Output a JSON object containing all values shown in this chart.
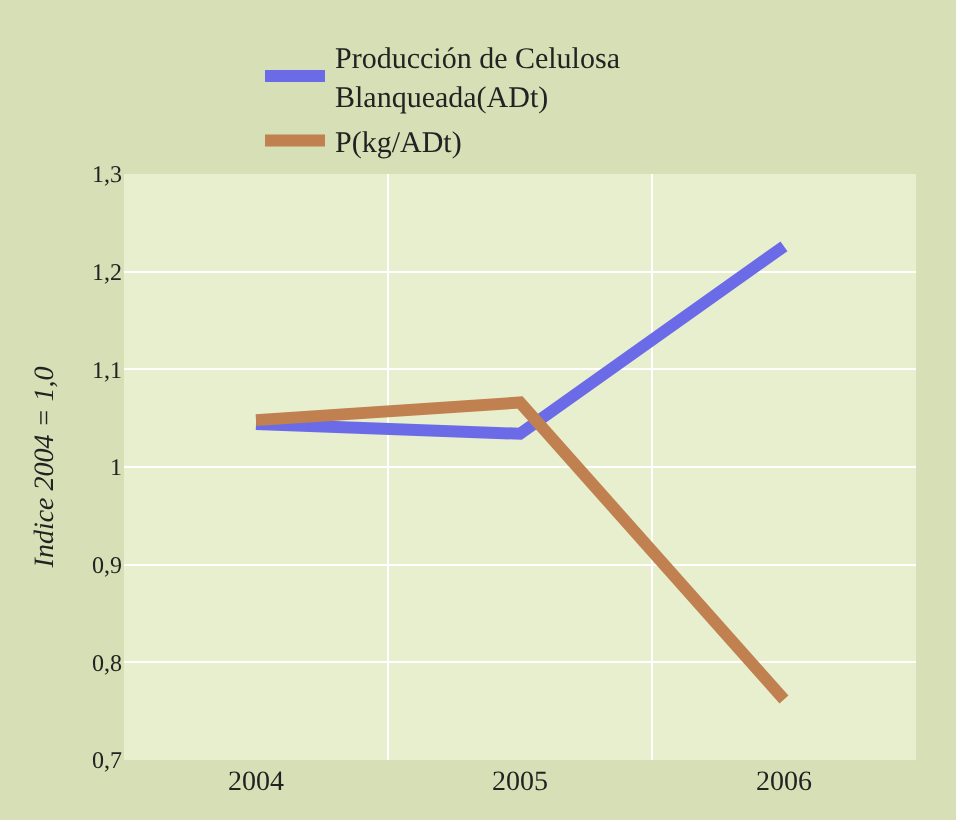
{
  "chart_data": {
    "type": "line",
    "ylabel": "Indice 2004 = 1,0",
    "categories": [
      "2004",
      "2005",
      "2006"
    ],
    "series": [
      {
        "name": "Producción de Celulosa Blanqueada(ADt)",
        "color": "#6b6be8",
        "values": [
          1.044,
          1.034,
          1.226
        ]
      },
      {
        "name": "P(kg/ADt)",
        "color": "#c0804f",
        "values": [
          1.048,
          1.066,
          0.762
        ]
      }
    ],
    "ylim": [
      0.7,
      1.3
    ],
    "yticks": [
      {
        "value": 0.7,
        "label": "0,7"
      },
      {
        "value": 0.8,
        "label": "0,8"
      },
      {
        "value": 0.9,
        "label": "0,9"
      },
      1,
      {
        "value": 1.1,
        "label": "1,1"
      },
      {
        "value": 1.2,
        "label": "1,2"
      },
      {
        "value": 1.3,
        "label": "1,3"
      }
    ],
    "grid": true,
    "legend": "top",
    "marker": "none",
    "line_style": "solid"
  }
}
